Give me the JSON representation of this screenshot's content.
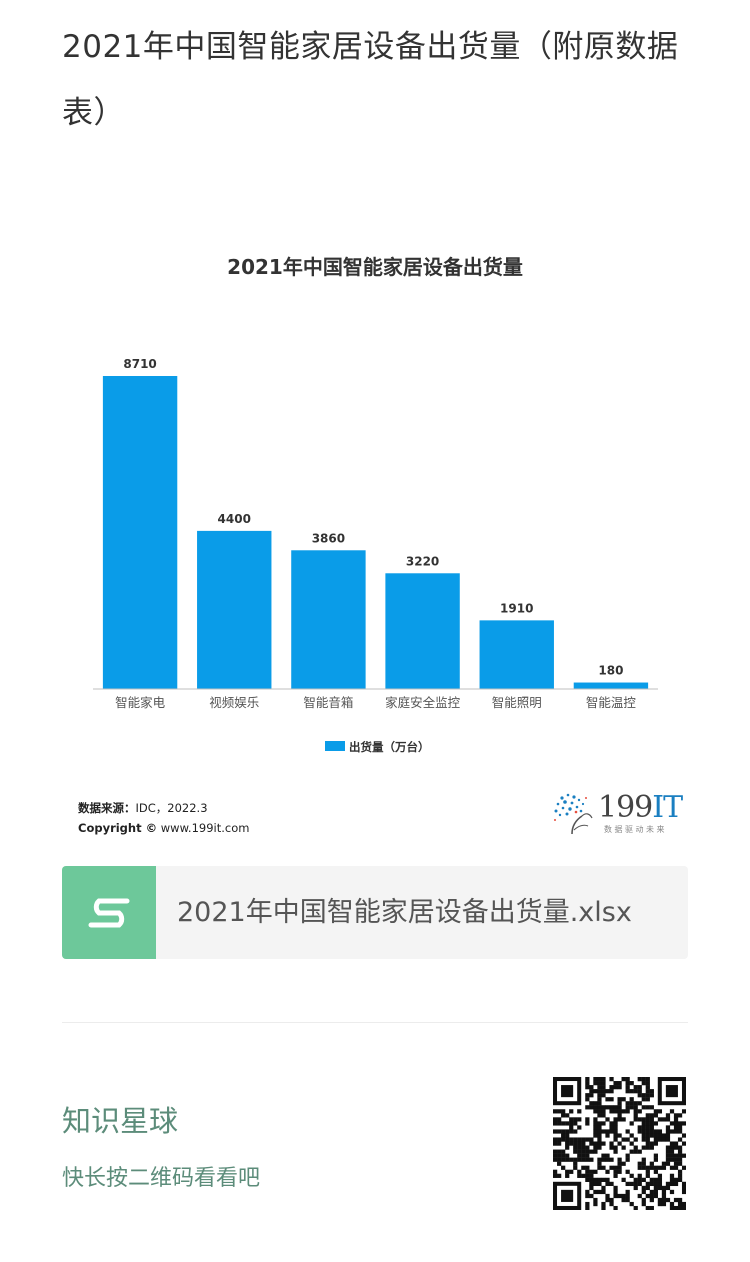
{
  "article": {
    "title": "2021年中国智能家居设备出货量（附原数据表）"
  },
  "chart_data": {
    "type": "bar",
    "title": "2021年中国智能家居设备出货量",
    "categories": [
      "智能家电",
      "视频娱乐",
      "智能音箱",
      "家庭安全监控",
      "智能照明",
      "智能温控"
    ],
    "series": [
      {
        "name": "出货量（万台）",
        "values": [
          8710,
          4400,
          3860,
          3220,
          1910,
          180
        ]
      }
    ],
    "data_labels": [
      "8710",
      "4400",
      "3860",
      "3220",
      "1910",
      "180"
    ],
    "ylim": [
      0,
      8710
    ],
    "grid": false,
    "legend": "bottom",
    "bar_color": "#0a9ce8"
  },
  "source": {
    "label": "数据来源：",
    "text": "IDC，2022.3",
    "copyright_label": "Copyright ©",
    "copyright_text": " www.199it.com"
  },
  "brand": {
    "number": "199",
    "suffix": "IT",
    "tagline": "数据驱动未来"
  },
  "file": {
    "name": "2021年中国智能家居设备出货量.xlsx",
    "icon": "spreadsheet-s-icon",
    "icon_color": "#6dc89a"
  },
  "promo": {
    "title": "知识星球",
    "subtitle": "快长按二维码看看吧",
    "qr_icon": "qr-code-icon"
  }
}
